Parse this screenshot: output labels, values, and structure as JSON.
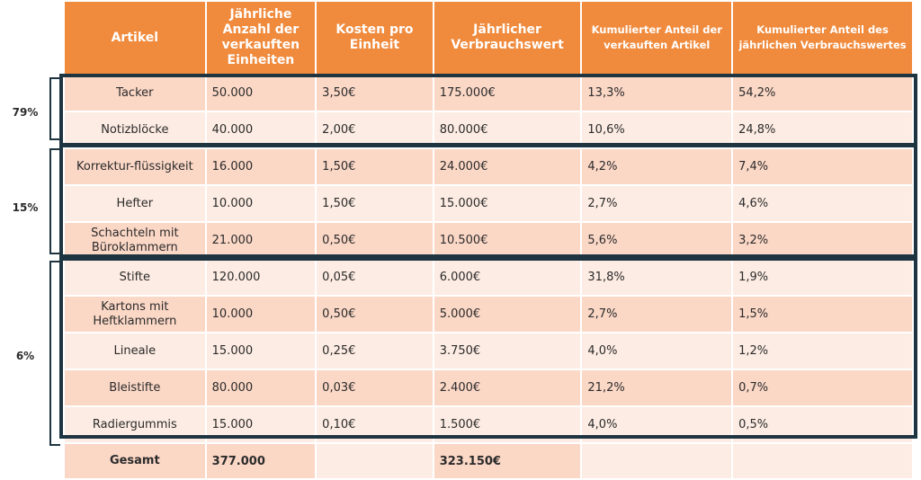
{
  "headers": [
    "Artikel",
    "Jährliche Anzahl der verkauften Einheiten",
    "Kosten pro Einheit",
    "Jährlicher Verbrauchswert",
    "Kumulierter Anteil der verkauften Artikel",
    "Kumulierter Anteil des jährlichen Verbrauchswertes"
  ],
  "rows": [
    {
      "artikel": "Tacker",
      "anzahl": "50.000",
      "kosten": "3,50€",
      "wert": "175.000€",
      "anteil_artikel": "13,3%",
      "anteil_wert": "54,2%"
    },
    {
      "artikel": "Notizblöcke",
      "anzahl": "40.000",
      "kosten": "2,00€",
      "wert": "80.000€",
      "anteil_artikel": "10,6%",
      "anteil_wert": "24,8%"
    },
    {
      "artikel": "Korrektur-flüssigkeit",
      "anzahl": "16.000",
      "kosten": "1,50€",
      "wert": "24.000€",
      "anteil_artikel": "4,2%",
      "anteil_wert": "7,4%"
    },
    {
      "artikel": "Hefter",
      "anzahl": "10.000",
      "kosten": "1,50€",
      "wert": "15.000€",
      "anteil_artikel": "2,7%",
      "anteil_wert": "4,6%"
    },
    {
      "artikel": "Schachteln mit Büroklammern",
      "anzahl": "21.000",
      "kosten": "0,50€",
      "wert": "10.500€",
      "anteil_artikel": "5,6%",
      "anteil_wert": "3,2%"
    },
    {
      "artikel": "Stifte",
      "anzahl": "120.000",
      "kosten": "0,05€",
      "wert": "6.000€",
      "anteil_artikel": "31,8%",
      "anteil_wert": "1,9%"
    },
    {
      "artikel": "Kartons mit Heftklammern",
      "anzahl": "10.000",
      "kosten": "0,50€",
      "wert": "5.000€",
      "anteil_artikel": "2,7%",
      "anteil_wert": "1,5%"
    },
    {
      "artikel": "Lineale",
      "anzahl": "15.000",
      "kosten": "0,25€",
      "wert": "3.750€",
      "anteil_artikel": "4,0%",
      "anteil_wert": "1,2%"
    },
    {
      "artikel": "Bleistifte",
      "anzahl": "80.000",
      "kosten": "0,03€",
      "wert": "2.400€",
      "anteil_artikel": "21,2%",
      "anteil_wert": "0,7%"
    },
    {
      "artikel": "Radiergummis",
      "anzahl": "15.000",
      "kosten": "0,10€",
      "wert": "1.500€",
      "anteil_artikel": "4,0%",
      "anteil_wert": "0,5%"
    }
  ],
  "total": {
    "label": "Gesamt",
    "anzahl": "377.000",
    "wert": "323.150€"
  },
  "groups": [
    {
      "label": "79%"
    },
    {
      "label": "15%"
    },
    {
      "label": "6%"
    }
  ],
  "colors": {
    "header": "#f08a3c",
    "row_dark": "#fbd7c6",
    "row_light": "#fdece3",
    "border": "#1e3440"
  }
}
